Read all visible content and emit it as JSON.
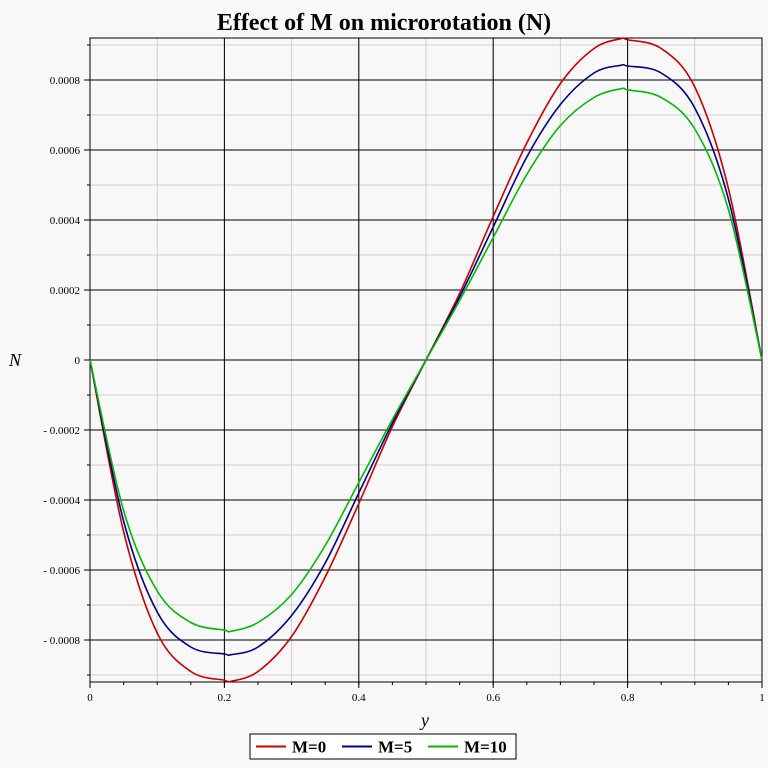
{
  "chart_data": {
    "type": "line",
    "title": "Effect of M on microrotation (N)",
    "xlabel": "y",
    "ylabel": "N",
    "xlim": [
      0,
      1
    ],
    "ylim": [
      -0.00092,
      0.00092
    ],
    "grid": true,
    "legend_position": "bottom-center",
    "x_ticks": [
      0,
      0.2,
      0.4,
      0.6,
      0.8,
      1
    ],
    "x_tick_labels": [
      "0",
      "0.2",
      "0.4",
      "0.6",
      "0.8",
      "1"
    ],
    "y_ticks": [
      -0.0008,
      -0.0006,
      -0.0004,
      -0.0002,
      0,
      0.0002,
      0.0004,
      0.0006,
      0.0008
    ],
    "y_tick_labels": [
      "- 0.0008",
      "- 0.0006",
      "- 0.0004",
      "- 0.0002",
      "0",
      "0.0002",
      "0.0004",
      "0.0006",
      "0.0008"
    ],
    "x": [
      0,
      0.05,
      0.1,
      0.15,
      0.2,
      0.21,
      0.25,
      0.3,
      0.35,
      0.4,
      0.45,
      0.5,
      0.55,
      0.6,
      0.65,
      0.7,
      0.75,
      0.79,
      0.8,
      0.85,
      0.9,
      0.95,
      1
    ],
    "series": [
      {
        "name": "M=0",
        "color": "#cc0000",
        "values": [
          0,
          -0.00049,
          -0.00078,
          -0.00089,
          -0.000915,
          -0.000918,
          -0.00089,
          -0.00079,
          -0.00062,
          -0.00041,
          -0.00019,
          0,
          0.00019,
          0.00041,
          0.00062,
          0.00079,
          0.00089,
          0.000918,
          0.000915,
          0.00089,
          0.00078,
          0.00049,
          0
        ]
      },
      {
        "name": "M=5",
        "color": "#00008b",
        "values": [
          0,
          -0.00046,
          -0.00072,
          -0.00082,
          -0.00084,
          -0.000842,
          -0.00082,
          -0.00073,
          -0.00058,
          -0.00038,
          -0.00018,
          0,
          0.00018,
          0.00038,
          0.00058,
          0.00073,
          0.00082,
          0.000842,
          0.00084,
          0.00082,
          0.00072,
          0.00046,
          0
        ]
      },
      {
        "name": "M=10",
        "color": "#00bb00",
        "values": [
          0,
          -0.00043,
          -0.00066,
          -0.00075,
          -0.000772,
          -0.000775,
          -0.00075,
          -0.00067,
          -0.00053,
          -0.00035,
          -0.00017,
          0,
          0.00017,
          0.00035,
          0.00053,
          0.00067,
          0.00075,
          0.000775,
          0.000772,
          0.00075,
          0.00066,
          0.00043,
          0
        ]
      }
    ]
  }
}
